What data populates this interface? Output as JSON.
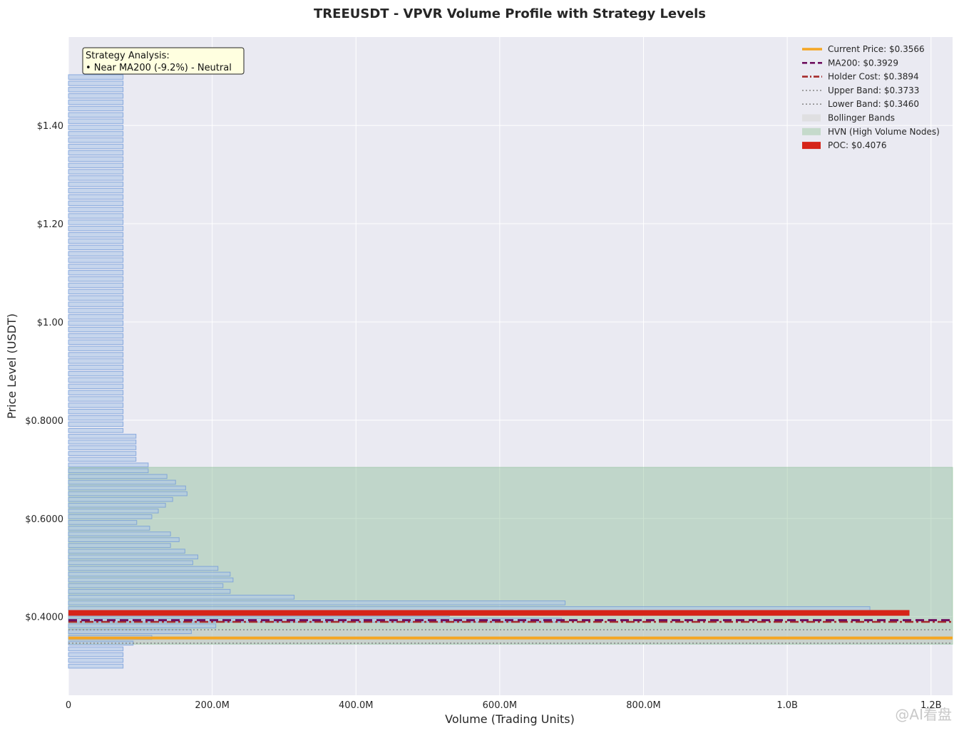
{
  "chart_data": {
    "type": "bar",
    "orientation": "horizontal",
    "title": "TREEUSDT - VPVR Volume Profile with Strategy Levels",
    "xlabel": "Volume (Trading Units)",
    "ylabel": "Price Level (USDT)",
    "xlim": [
      0,
      1230000000
    ],
    "ylim": [
      0.24,
      1.58
    ],
    "x_ticks": [
      {
        "value": 0,
        "label": "0"
      },
      {
        "value": 200000000,
        "label": "200.0M"
      },
      {
        "value": 400000000,
        "label": "400.0M"
      },
      {
        "value": 600000000,
        "label": "600.0M"
      },
      {
        "value": 800000000,
        "label": "800.0M"
      },
      {
        "value": 1000000000,
        "label": "1.0B"
      },
      {
        "value": 1200000000,
        "label": "1.2B"
      }
    ],
    "y_ticks": [
      {
        "value": 1.4,
        "label": "$1.40"
      },
      {
        "value": 1.2,
        "label": "$1.20"
      },
      {
        "value": 1.0,
        "label": "$1.00"
      },
      {
        "value": 0.8,
        "label": "$0.8000"
      },
      {
        "value": 0.6,
        "label": "$0.6000"
      },
      {
        "value": 0.4,
        "label": "$0.4000"
      }
    ],
    "grid": true,
    "legend_position": "top-right",
    "bin_height": 0.0117,
    "bins": [
      {
        "price": 0.2993,
        "volume": 76000000
      },
      {
        "price": 0.311,
        "volume": 76000000
      },
      {
        "price": 0.3227,
        "volume": 76000000
      },
      {
        "price": 0.3344,
        "volume": 76000000
      },
      {
        "price": 0.3461,
        "volume": 90000000
      },
      {
        "price": 0.3578,
        "volume": 116000000
      },
      {
        "price": 0.3695,
        "volume": 171000000
      },
      {
        "price": 0.3812,
        "volume": 205000000
      },
      {
        "price": 0.3929,
        "volume": 686000000
      },
      {
        "price": 0.4046,
        "volume": 530000000
      },
      {
        "price": 0.4163,
        "volume": 1115000000
      },
      {
        "price": 0.428,
        "volume": 691000000
      },
      {
        "price": 0.4397,
        "volume": 314000000
      },
      {
        "price": 0.4514,
        "volume": 225000000
      },
      {
        "price": 0.4631,
        "volume": 215000000
      },
      {
        "price": 0.4748,
        "volume": 229000000
      },
      {
        "price": 0.4865,
        "volume": 225000000
      },
      {
        "price": 0.4982,
        "volume": 208000000
      },
      {
        "price": 0.5099,
        "volume": 173000000
      },
      {
        "price": 0.5216,
        "volume": 180000000
      },
      {
        "price": 0.5333,
        "volume": 162000000
      },
      {
        "price": 0.545,
        "volume": 142000000
      },
      {
        "price": 0.5567,
        "volume": 154000000
      },
      {
        "price": 0.5684,
        "volume": 142000000
      },
      {
        "price": 0.5801,
        "volume": 113000000
      },
      {
        "price": 0.5918,
        "volume": 95000000
      },
      {
        "price": 0.6035,
        "volume": 116000000
      },
      {
        "price": 0.6152,
        "volume": 125000000
      },
      {
        "price": 0.6269,
        "volume": 135000000
      },
      {
        "price": 0.6386,
        "volume": 145000000
      },
      {
        "price": 0.6503,
        "volume": 165000000
      },
      {
        "price": 0.662,
        "volume": 163000000
      },
      {
        "price": 0.6737,
        "volume": 149000000
      },
      {
        "price": 0.6854,
        "volume": 137000000
      },
      {
        "price": 0.6971,
        "volume": 111000000
      },
      {
        "price": 0.7088,
        "volume": 111000000
      },
      {
        "price": 0.7205,
        "volume": 94000000
      },
      {
        "price": 0.7322,
        "volume": 94000000
      },
      {
        "price": 0.7439,
        "volume": 94000000
      },
      {
        "price": 0.7556,
        "volume": 94000000
      },
      {
        "price": 0.7673,
        "volume": 94000000
      },
      {
        "price": 0.779,
        "volume": 76000000
      }
    ],
    "uniform_bins": {
      "from": 0.779,
      "to": 1.5005,
      "step": 0.01285,
      "volume": 76000000
    },
    "levels": [
      {
        "name": "Current Price",
        "value": 0.3566,
        "color": "#f5a623",
        "style": "solid"
      },
      {
        "name": "MA200",
        "value": 0.3929,
        "color": "#6d0f5e",
        "style": "dashed"
      },
      {
        "name": "Holder Cost",
        "value": 0.3894,
        "color": "#a52a2a",
        "style": "dashdot"
      },
      {
        "name": "Upper Band",
        "value": 0.3733,
        "color": "#8c8c8c",
        "style": "dotted"
      },
      {
        "name": "Lower Band",
        "value": 0.346,
        "color": "#8c8c8c",
        "style": "dotted"
      },
      {
        "name": "POC",
        "value": 0.4076,
        "color": "#d62418",
        "style": "band"
      }
    ],
    "bollinger_band": {
      "from": 0.346,
      "to": 0.3733
    },
    "hvn_zone": {
      "from": 0.344,
      "to": 0.704
    },
    "legend": [
      {
        "label": "Current Price: $0.3566",
        "kind": "line",
        "color": "#f5a623",
        "style": "solid"
      },
      {
        "label": "MA200: $0.3929",
        "kind": "line",
        "color": "#6d0f5e",
        "style": "dashed"
      },
      {
        "label": "Holder Cost: $0.3894",
        "kind": "line",
        "color": "#a52a2a",
        "style": "dashdot"
      },
      {
        "label": "Upper Band: $0.3733",
        "kind": "line",
        "color": "#8c8c8c",
        "style": "dotted"
      },
      {
        "label": "Lower Band: $0.3460",
        "kind": "line",
        "color": "#8c8c8c",
        "style": "dotted"
      },
      {
        "label": "Bollinger Bands",
        "kind": "patch",
        "color": "#dcdcdc"
      },
      {
        "label": "HVN (High Volume Nodes)",
        "kind": "patch",
        "color": "#bcd6c0"
      },
      {
        "label": "POC: $0.4076",
        "kind": "patch",
        "color": "#d62418"
      }
    ],
    "annotation": {
      "lines": [
        "Strategy Analysis:",
        "• Near MA200 (-9.2%) - Neutral"
      ]
    },
    "colors": {
      "background": "#eaeaf2",
      "bar_fill": "#aec7e8",
      "bar_edge": "#6f98d8",
      "hvn_fill": "#8fbf9a",
      "bollinger_fill": "#cfcfcf",
      "annotation_fill": "#ffffe0"
    }
  },
  "watermark": "@AI看盘"
}
